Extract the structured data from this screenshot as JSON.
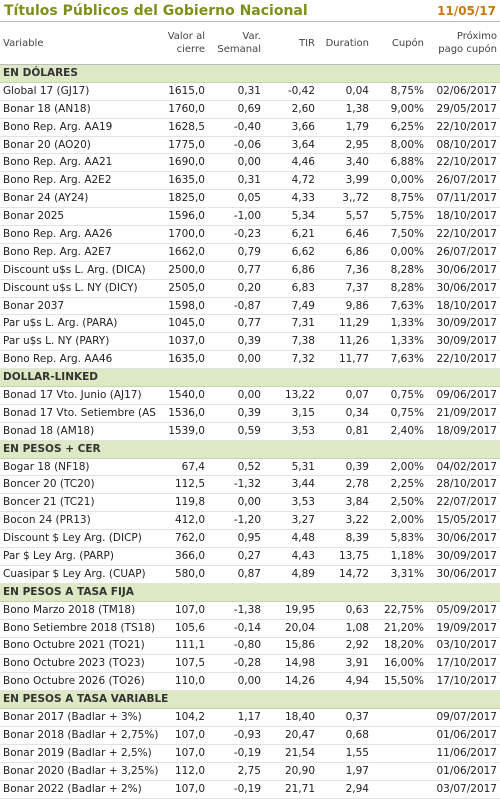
{
  "header": {
    "title": "Títulos Públicos del Gobierno Nacional",
    "date": "11/05/17"
  },
  "table": {
    "columns": [
      "Variable",
      "Valor al\ncierre",
      "Var.\nSemanal",
      "TIR",
      "Duration",
      "Cupón",
      "Próximo\npago cupón"
    ],
    "sections": [
      {
        "title": "EN DÓLARES",
        "rows": [
          [
            "Global 17 (GJ17)",
            "1615,0",
            "0,31",
            "-0,42",
            "0,04",
            "8,75%",
            "02/06/2017"
          ],
          [
            "Bonar 18 (AN18)",
            "1760,0",
            "0,69",
            "2,60",
            "1,38",
            "9,00%",
            "29/05/2017"
          ],
          [
            "Bono Rep. Arg. AA19",
            "1628,5",
            "-0,40",
            "3,66",
            "1,79",
            "6,25%",
            "22/10/2017"
          ],
          [
            "Bonar 20 (AO20)",
            "1775,0",
            "-0,06",
            "3,64",
            "2,95",
            "8,00%",
            "08/10/2017"
          ],
          [
            "Bono Rep. Arg. AA21",
            "1690,0",
            "0,00",
            "4,46",
            "3,40",
            "6,88%",
            "22/10/2017"
          ],
          [
            "Bono Rep. Arg. A2E2",
            "1635,0",
            "0,31",
            "4,72",
            "3,99",
            "0,00%",
            "26/07/2017"
          ],
          [
            "Bonar 24 (AY24)",
            "1825,0",
            "0,05",
            "4,33",
            "3,,72",
            "8,75%",
            "07/11/2017"
          ],
          [
            "Bonar 2025",
            "1596,0",
            "-1,00",
            "5,34",
            "5,57",
            "5,75%",
            "18/10/2017"
          ],
          [
            "Bono Rep. Arg. AA26",
            "1700,0",
            "-0,23",
            "6,21",
            "6,46",
            "7,50%",
            "22/10/2017"
          ],
          [
            "Bono Rep. Arg. A2E7",
            "1662,0",
            "0,79",
            "6,62",
            "6,86",
            "0,00%",
            "26/07/2017"
          ],
          [
            "Discount u$s L. Arg. (DICA)",
            "2500,0",
            "0,77",
            "6,86",
            "7,36",
            "8,28%",
            "30/06/2017"
          ],
          [
            "Discount u$s L. NY (DICY)",
            "2505,0",
            "0,20",
            "6,83",
            "7,37",
            "8,28%",
            "30/06/2017"
          ],
          [
            "Bonar 2037",
            "1598,0",
            "-0,87",
            "7,49",
            "9,86",
            "7,63%",
            "18/10/2017"
          ],
          [
            "Par u$s L. Arg. (PARA)",
            "1045,0",
            "0,77",
            "7,31",
            "11,29",
            "1,33%",
            "30/09/2017"
          ],
          [
            "Par u$s L. NY (PARY)",
            "1037,0",
            "0,39",
            "7,38",
            "11,26",
            "1,33%",
            "30/09/2017"
          ],
          [
            "Bono Rep. Arg. AA46",
            "1635,0",
            "0,00",
            "7,32",
            "11,77",
            "7,63%",
            "22/10/2017"
          ]
        ]
      },
      {
        "title": "DOLLAR-LINKED",
        "rows": [
          [
            "Bonad 17 Vto. Junio (AJ17)",
            "1540,0",
            "0,00",
            "13,22",
            "0,07",
            "0,75%",
            "09/06/2017"
          ],
          [
            "Bonad 17 Vto. Setiembre (AS",
            "1536,0",
            "0,39",
            "3,15",
            "0,34",
            "0,75%",
            "21/09/2017"
          ],
          [
            "Bonad 18 (AM18)",
            "1539,0",
            "0,59",
            "3,53",
            "0,81",
            "2,40%",
            "18/09/2017"
          ]
        ]
      },
      {
        "title": "EN PESOS + CER",
        "rows": [
          [
            "Bogar 18 (NF18)",
            "67,4",
            "0,52",
            "5,31",
            "0,39",
            "2,00%",
            "04/02/2017"
          ],
          [
            "Boncer 20 (TC20)",
            "112,5",
            "-1,32",
            "3,44",
            "2,78",
            "2,25%",
            "28/10/2017"
          ],
          [
            "Boncer 21 (TC21)",
            "119,8",
            "0,00",
            "3,53",
            "3,84",
            "2,50%",
            "22/07/2017"
          ],
          [
            "Bocon 24 (PR13)",
            "412,0",
            "-1,20",
            "3,27",
            "3,22",
            "2,00%",
            "15/05/2017"
          ],
          [
            "Discount $ Ley Arg. (DICP)",
            "762,0",
            "0,95",
            "4,48",
            "8,39",
            "5,83%",
            "30/06/2017"
          ],
          [
            "Par $ Ley Arg. (PARP)",
            "366,0",
            "0,27",
            "4,43",
            "13,75",
            "1,18%",
            "30/09/2017"
          ],
          [
            "Cuasipar $ Ley Arg. (CUAP)",
            "580,0",
            "0,87",
            "4,89",
            "14,72",
            "3,31%",
            "30/06/2017"
          ]
        ]
      },
      {
        "title": "EN PESOS A TASA FIJA",
        "rows": [
          [
            "Bono Marzo 2018 (TM18)",
            "107,0",
            "-1,38",
            "19,95",
            "0,63",
            "22,75%",
            "05/09/2017"
          ],
          [
            "Bono Setiembre 2018 (TS18)",
            "105,6",
            "-0,14",
            "20,04",
            "1,08",
            "21,20%",
            "19/09/2017"
          ],
          [
            "Bono Octubre 2021 (TO21)",
            "111,1",
            "-0,80",
            "15,86",
            "2,92",
            "18,20%",
            "03/10/2017"
          ],
          [
            "Bono Octubre 2023 (TO23)",
            "107,5",
            "-0,28",
            "14,98",
            "3,91",
            "16,00%",
            "17/10/2017"
          ],
          [
            "Bono Octubre 2026 (TO26)",
            "110,0",
            "0,00",
            "14,26",
            "4,94",
            "15,50%",
            "17/10/2017"
          ]
        ]
      },
      {
        "title": "EN PESOS A TASA VARIABLE",
        "rows": [
          [
            "Bonar 2017 (Badlar + 3%)",
            "104,2",
            "1,17",
            "18,40",
            "0,37",
            null,
            "09/07/2017"
          ],
          [
            "Bonar 2018 (Badlar + 2,75%)",
            "107,0",
            "-0,93",
            "20,47",
            "0,68",
            null,
            "01/06/2017"
          ],
          [
            "Bonar 2019 (Badlar + 2,5%)",
            "107,0",
            "-0,19",
            "21,54",
            "1,55",
            null,
            "11/06/2017"
          ],
          [
            "Bonar 2020 (Badlar + 3,25%)",
            "112,0",
            "2,75",
            "20,90",
            "1,97",
            null,
            "01/06/2017"
          ],
          [
            "Bonar 2022 (Badlar + 2%)",
            "107,0",
            "-0,19",
            "21,71",
            "2,94",
            null,
            "03/07/2017"
          ]
        ]
      }
    ]
  }
}
